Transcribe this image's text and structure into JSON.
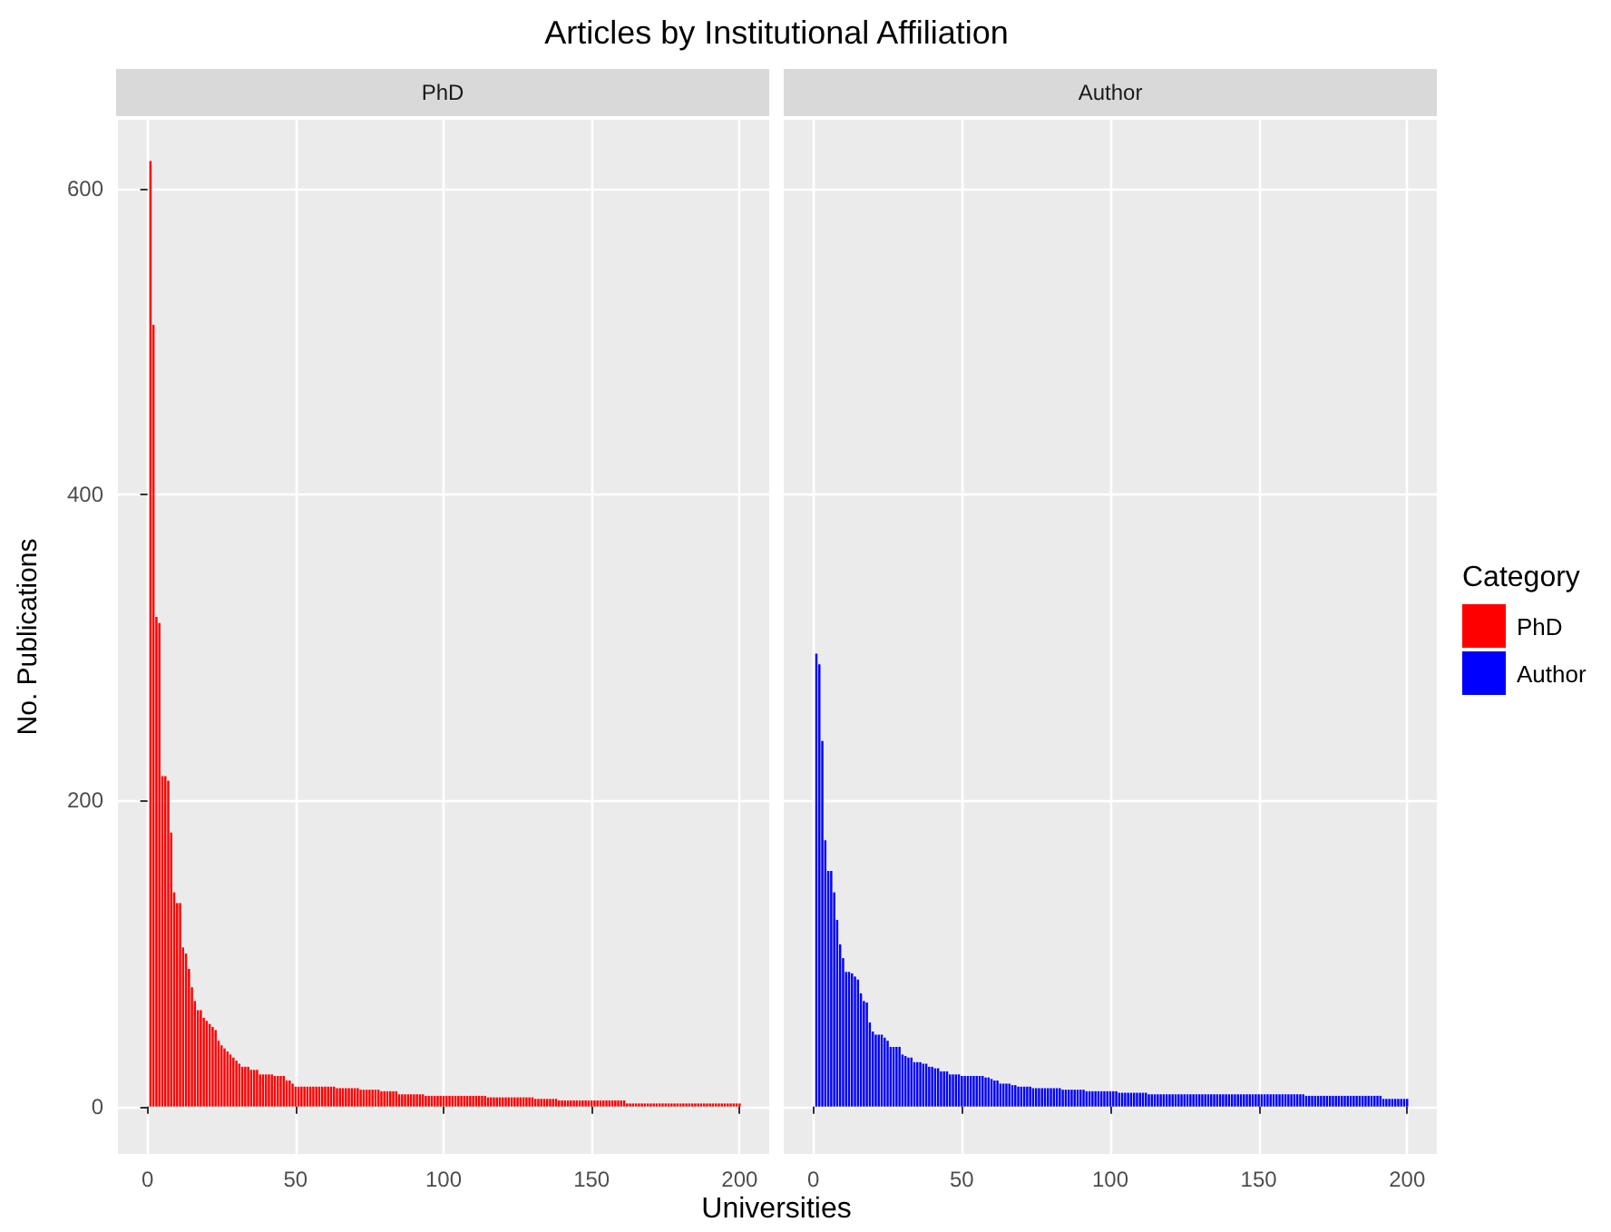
{
  "chart_data": [
    {
      "type": "bar",
      "title": "Articles by Institutional Affiliation",
      "subtitle": "PhD",
      "xlabel": "Universities",
      "ylabel": "No. Publications",
      "legend": "right",
      "legend_title": "Category",
      "grid": true,
      "xlim": [
        -10,
        210
      ],
      "xticks": [
        0,
        50,
        100,
        150,
        200
      ],
      "ylim": [
        -31,
        645
      ],
      "yticks": [
        0,
        200,
        400,
        600
      ],
      "x": [
        1,
        2,
        3,
        4,
        5,
        6,
        7,
        8,
        9,
        10,
        11,
        12,
        13,
        14,
        15,
        16,
        17,
        18,
        19,
        20,
        21,
        22,
        23,
        24,
        25,
        26,
        27,
        28,
        29,
        30,
        31,
        32,
        33,
        34,
        35,
        36,
        37,
        38,
        39,
        40,
        41,
        42,
        43,
        44,
        45,
        46,
        47,
        48,
        49,
        50,
        51,
        52,
        53,
        54,
        55,
        56,
        57,
        58,
        59,
        60,
        61,
        62,
        63,
        64,
        65,
        66,
        67,
        68,
        69,
        70,
        71,
        72,
        73,
        74,
        75,
        76,
        77,
        78,
        79,
        80,
        81,
        82,
        83,
        84,
        85,
        86,
        87,
        88,
        89,
        90,
        91,
        92,
        93,
        94,
        95,
        96,
        97,
        98,
        99,
        100,
        101,
        102,
        103,
        104,
        105,
        106,
        107,
        108,
        109,
        110,
        111,
        112,
        113,
        114,
        115,
        116,
        117,
        118,
        119,
        120,
        121,
        122,
        123,
        124,
        125,
        126,
        127,
        128,
        129,
        130,
        131,
        132,
        133,
        134,
        135,
        136,
        137,
        138,
        139,
        140,
        141,
        142,
        143,
        144,
        145,
        146,
        147,
        148,
        149,
        150,
        151,
        152,
        153,
        154,
        155,
        156,
        157,
        158,
        159,
        160,
        161,
        162,
        163,
        164,
        165,
        166,
        167,
        168,
        169,
        170,
        171,
        172,
        173,
        174,
        175,
        176,
        177,
        178,
        179,
        180,
        181,
        182,
        183,
        184,
        185,
        186,
        187,
        188,
        189,
        190,
        191,
        192,
        193,
        194,
        195,
        196,
        197,
        198,
        199,
        200
      ],
      "series": [
        {
          "name": "PhD",
          "color": "#ff0000",
          "values": [
            618,
            511,
            320,
            316,
            216,
            216,
            213,
            179,
            140,
            133,
            133,
            104,
            100,
            90,
            78,
            69,
            63,
            63,
            58,
            56,
            54,
            52,
            50,
            43,
            40,
            38,
            36,
            34,
            32,
            30,
            28,
            26,
            26,
            26,
            24,
            24,
            24,
            21,
            21,
            21,
            21,
            21,
            20,
            20,
            20,
            20,
            17,
            17,
            15,
            13,
            13,
            13,
            13,
            13,
            13,
            13,
            13,
            13,
            13,
            13,
            13,
            13,
            13,
            12,
            12,
            12,
            12,
            12,
            12,
            12,
            12,
            11,
            11,
            11,
            11,
            11,
            11,
            11,
            10,
            10,
            10,
            10,
            10,
            10,
            8,
            8,
            8,
            8,
            8,
            8,
            8,
            8,
            8,
            7,
            7,
            7,
            7,
            7,
            7,
            7,
            7,
            7,
            7,
            7,
            7,
            7,
            7,
            7,
            7,
            7,
            7,
            7,
            7,
            7,
            6,
            6,
            6,
            6,
            6,
            6,
            6,
            6,
            6,
            6,
            6,
            6,
            6,
            6,
            6,
            6,
            5,
            5,
            5,
            5,
            5,
            5,
            5,
            5,
            4,
            4,
            4,
            4,
            4,
            4,
            4,
            4,
            4,
            4,
            4,
            4,
            4,
            4,
            4,
            4,
            4,
            4,
            4,
            4,
            4,
            4,
            4,
            2,
            2,
            2,
            2,
            2,
            2,
            2,
            2,
            2,
            2,
            2,
            2,
            2,
            2,
            2,
            2,
            2,
            2,
            2,
            2,
            2,
            2,
            2,
            2,
            2,
            2,
            2,
            2,
            2,
            2,
            2,
            2,
            2,
            2,
            2,
            2,
            2,
            2,
            2
          ]
        }
      ]
    },
    {
      "type": "bar",
      "subtitle": "Author",
      "legend": "right",
      "grid": true,
      "tick_labels": "x",
      "xlim": [
        -10,
        210
      ],
      "xticks": [
        0,
        50,
        100,
        150,
        200
      ],
      "ylim": [
        -31,
        645
      ],
      "yticks": [
        0,
        200,
        400,
        600
      ],
      "x": [
        1,
        2,
        3,
        4,
        5,
        6,
        7,
        8,
        9,
        10,
        11,
        12,
        13,
        14,
        15,
        16,
        17,
        18,
        19,
        20,
        21,
        22,
        23,
        24,
        25,
        26,
        27,
        28,
        29,
        30,
        31,
        32,
        33,
        34,
        35,
        36,
        37,
        38,
        39,
        40,
        41,
        42,
        43,
        44,
        45,
        46,
        47,
        48,
        49,
        50,
        51,
        52,
        53,
        54,
        55,
        56,
        57,
        58,
        59,
        60,
        61,
        62,
        63,
        64,
        65,
        66,
        67,
        68,
        69,
        70,
        71,
        72,
        73,
        74,
        75,
        76,
        77,
        78,
        79,
        80,
        81,
        82,
        83,
        84,
        85,
        86,
        87,
        88,
        89,
        90,
        91,
        92,
        93,
        94,
        95,
        96,
        97,
        98,
        99,
        100,
        101,
        102,
        103,
        104,
        105,
        106,
        107,
        108,
        109,
        110,
        111,
        112,
        113,
        114,
        115,
        116,
        117,
        118,
        119,
        120,
        121,
        122,
        123,
        124,
        125,
        126,
        127,
        128,
        129,
        130,
        131,
        132,
        133,
        134,
        135,
        136,
        137,
        138,
        139,
        140,
        141,
        142,
        143,
        144,
        145,
        146,
        147,
        148,
        149,
        150,
        151,
        152,
        153,
        154,
        155,
        156,
        157,
        158,
        159,
        160,
        161,
        162,
        163,
        164,
        165,
        166,
        167,
        168,
        169,
        170,
        171,
        172,
        173,
        174,
        175,
        176,
        177,
        178,
        179,
        180,
        181,
        182,
        183,
        184,
        185,
        186,
        187,
        188,
        189,
        190,
        191,
        192,
        193,
        194,
        195,
        196,
        197,
        198,
        199,
        200
      ],
      "series": [
        {
          "name": "Author",
          "color": "#0000ff",
          "values": [
            296,
            289,
            239,
            174,
            154,
            154,
            140,
            122,
            106,
            97,
            88,
            88,
            87,
            85,
            83,
            74,
            69,
            68,
            55,
            49,
            47,
            47,
            47,
            45,
            43,
            39,
            39,
            39,
            39,
            34,
            33,
            32,
            32,
            29,
            29,
            29,
            28,
            28,
            26,
            26,
            25,
            25,
            23,
            23,
            23,
            21,
            21,
            21,
            21,
            20,
            20,
            20,
            20,
            20,
            20,
            20,
            20,
            19,
            19,
            18,
            17,
            17,
            15,
            15,
            15,
            15,
            14,
            14,
            13,
            13,
            13,
            13,
            13,
            12,
            12,
            12,
            12,
            12,
            12,
            12,
            12,
            12,
            12,
            11,
            11,
            11,
            11,
            11,
            11,
            11,
            11,
            10,
            10,
            10,
            10,
            10,
            10,
            10,
            10,
            10,
            10,
            10,
            9,
            9,
            9,
            9,
            9,
            9,
            9,
            9,
            9,
            9,
            8,
            8,
            8,
            8,
            8,
            8,
            8,
            8,
            8,
            8,
            8,
            8,
            8,
            8,
            8,
            8,
            8,
            8,
            8,
            8,
            8,
            8,
            8,
            8,
            8,
            8,
            8,
            8,
            8,
            8,
            8,
            8,
            8,
            8,
            8,
            8,
            8,
            8,
            8,
            8,
            8,
            8,
            8,
            8,
            8,
            8,
            8,
            8,
            8,
            8,
            8,
            8,
            8,
            7,
            7,
            7,
            7,
            7,
            7,
            7,
            7,
            7,
            7,
            7,
            7,
            7,
            7,
            7,
            7,
            7,
            7,
            7,
            7,
            7,
            7,
            7,
            7,
            7,
            7,
            5,
            5,
            5,
            5,
            5,
            5,
            5,
            5,
            5
          ]
        }
      ]
    }
  ]
}
